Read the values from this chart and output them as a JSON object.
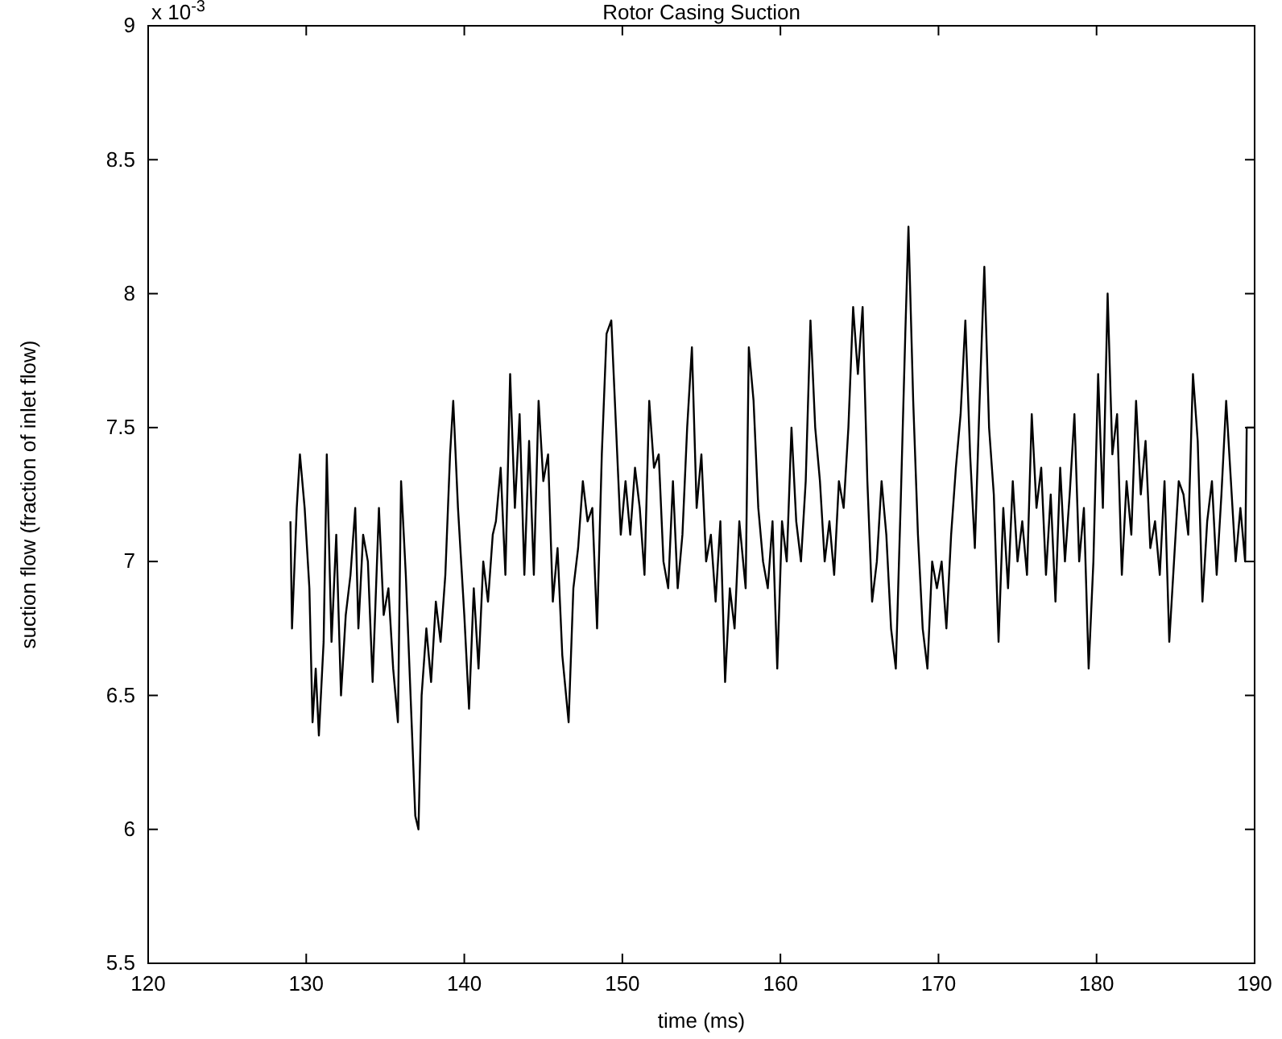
{
  "chart_data": {
    "type": "line",
    "title": "Rotor Casing Suction",
    "xlabel": "time (ms)",
    "ylabel": "suction flow (fraction of inlet flow)",
    "annotations": [
      "x 10$^{-3}$"
    ],
    "xlim": [
      120,
      190
    ],
    "xticks": [
      120,
      130,
      140,
      150,
      160,
      170,
      180,
      190
    ],
    "ylim": [
      5.5,
      9
    ],
    "yticks": [
      5.5,
      6,
      6.5,
      7,
      7.5,
      8,
      8.5,
      9
    ],
    "grid": false,
    "x": [
      129.0,
      129.1,
      129.4,
      129.6,
      129.9,
      130.2,
      130.4,
      130.6,
      130.8,
      131.1,
      131.3,
      131.6,
      131.9,
      132.2,
      132.5,
      132.8,
      133.1,
      133.3,
      133.6,
      133.9,
      134.2,
      134.6,
      134.9,
      135.2,
      135.5,
      135.8,
      136.0,
      136.3,
      136.6,
      136.9,
      137.1,
      137.3,
      137.6,
      137.9,
      138.2,
      138.5,
      138.8,
      139.1,
      139.3,
      139.6,
      140.0,
      140.3,
      140.6,
      140.9,
      141.2,
      141.5,
      141.8,
      142.0,
      142.3,
      142.6,
      142.9,
      143.2,
      143.5,
      143.8,
      144.1,
      144.4,
      144.7,
      145.0,
      145.3,
      145.6,
      145.9,
      146.2,
      146.6,
      146.9,
      147.2,
      147.5,
      147.8,
      148.1,
      148.4,
      148.7,
      149.0,
      149.3,
      149.6,
      149.9,
      150.2,
      150.5,
      150.8,
      151.1,
      151.4,
      151.7,
      152.0,
      152.3,
      152.6,
      152.9,
      153.2,
      153.5,
      153.8,
      154.1,
      154.4,
      154.7,
      155.0,
      155.3,
      155.6,
      155.9,
      156.2,
      156.5,
      156.8,
      157.1,
      157.4,
      157.8,
      158.0,
      158.3,
      158.6,
      158.9,
      159.2,
      159.5,
      159.8,
      160.1,
      160.4,
      160.7,
      161.0,
      161.3,
      161.6,
      161.9,
      162.2,
      162.5,
      162.8,
      163.1,
      163.4,
      163.7,
      164.0,
      164.3,
      164.6,
      164.9,
      165.2,
      165.5,
      165.8,
      166.1,
      166.4,
      166.7,
      167.0,
      167.3,
      167.6,
      167.9,
      168.1,
      168.4,
      168.7,
      169.0,
      169.3,
      169.6,
      169.9,
      170.2,
      170.5,
      170.8,
      171.1,
      171.4,
      171.7,
      172.0,
      172.3,
      172.6,
      172.9,
      173.2,
      173.5,
      173.8,
      174.1,
      174.4,
      174.7,
      175.0,
      175.3,
      175.6,
      175.9,
      176.2,
      176.5,
      176.8,
      177.1,
      177.4,
      177.7,
      178.0,
      178.3,
      178.6,
      178.9,
      179.2,
      179.5,
      179.8,
      180.1,
      180.4,
      180.7,
      181.0,
      181.3,
      181.6,
      181.9,
      182.2,
      182.5,
      182.8,
      183.1,
      183.4,
      183.7,
      184.0,
      184.3,
      184.6,
      184.9,
      185.2,
      185.5,
      185.8,
      186.1,
      186.4,
      186.7,
      187.0,
      187.3,
      187.6,
      187.9,
      188.2,
      188.5,
      188.8,
      189.1,
      189.4,
      189.5,
      190.0
    ],
    "series": [
      {
        "color": "#000000",
        "values": [
          7.15,
          6.75,
          7.2,
          7.4,
          7.2,
          6.9,
          6.4,
          6.6,
          6.35,
          6.7,
          7.4,
          6.7,
          7.1,
          6.5,
          6.8,
          6.95,
          7.2,
          6.75,
          7.1,
          7.0,
          6.55,
          7.2,
          6.8,
          6.9,
          6.6,
          6.4,
          7.3,
          6.95,
          6.5,
          6.05,
          6.0,
          6.5,
          6.75,
          6.55,
          6.85,
          6.7,
          6.95,
          7.4,
          7.6,
          7.2,
          6.8,
          6.45,
          6.9,
          6.6,
          7.0,
          6.85,
          7.1,
          7.15,
          7.35,
          6.95,
          7.7,
          7.2,
          7.55,
          6.95,
          7.45,
          6.95,
          7.6,
          7.3,
          7.4,
          6.85,
          7.05,
          6.65,
          6.4,
          6.9,
          7.05,
          7.3,
          7.15,
          7.2,
          6.75,
          7.4,
          7.85,
          7.9,
          7.5,
          7.1,
          7.3,
          7.1,
          7.35,
          7.2,
          6.95,
          7.6,
          7.35,
          7.4,
          7.0,
          6.9,
          7.3,
          6.9,
          7.1,
          7.5,
          7.8,
          7.2,
          7.4,
          7.0,
          7.1,
          6.85,
          7.15,
          6.55,
          6.9,
          6.75,
          7.15,
          6.9,
          7.8,
          7.6,
          7.2,
          7.0,
          6.9,
          7.15,
          6.6,
          7.15,
          7.0,
          7.5,
          7.15,
          7.0,
          7.3,
          7.9,
          7.5,
          7.3,
          7.0,
          7.15,
          6.95,
          7.3,
          7.2,
          7.5,
          7.95,
          7.7,
          7.95,
          7.3,
          6.85,
          7.0,
          7.3,
          7.1,
          6.75,
          6.6,
          7.2,
          7.85,
          8.25,
          7.6,
          7.1,
          6.75,
          6.6,
          7.0,
          6.9,
          7.0,
          6.75,
          7.1,
          7.35,
          7.55,
          7.9,
          7.4,
          7.05,
          7.6,
          8.1,
          7.5,
          7.25,
          6.7,
          7.2,
          6.9,
          7.3,
          7.0,
          7.15,
          6.95,
          7.55,
          7.2,
          7.35,
          6.95,
          7.25,
          6.85,
          7.35,
          7.0,
          7.25,
          7.55,
          7.0,
          7.2,
          6.6,
          7.0,
          7.7,
          7.2,
          8.0,
          7.4,
          7.55,
          6.95,
          7.3,
          7.1,
          7.6,
          7.25,
          7.45,
          7.05,
          7.15,
          6.95,
          7.3,
          6.7,
          7.0,
          7.3,
          7.25,
          7.1,
          7.7,
          7.45,
          6.85,
          7.15,
          7.3,
          6.95,
          7.25,
          7.6,
          7.3,
          7.0,
          7.2,
          7.0,
          7.5,
          7.5
        ]
      }
    ]
  }
}
